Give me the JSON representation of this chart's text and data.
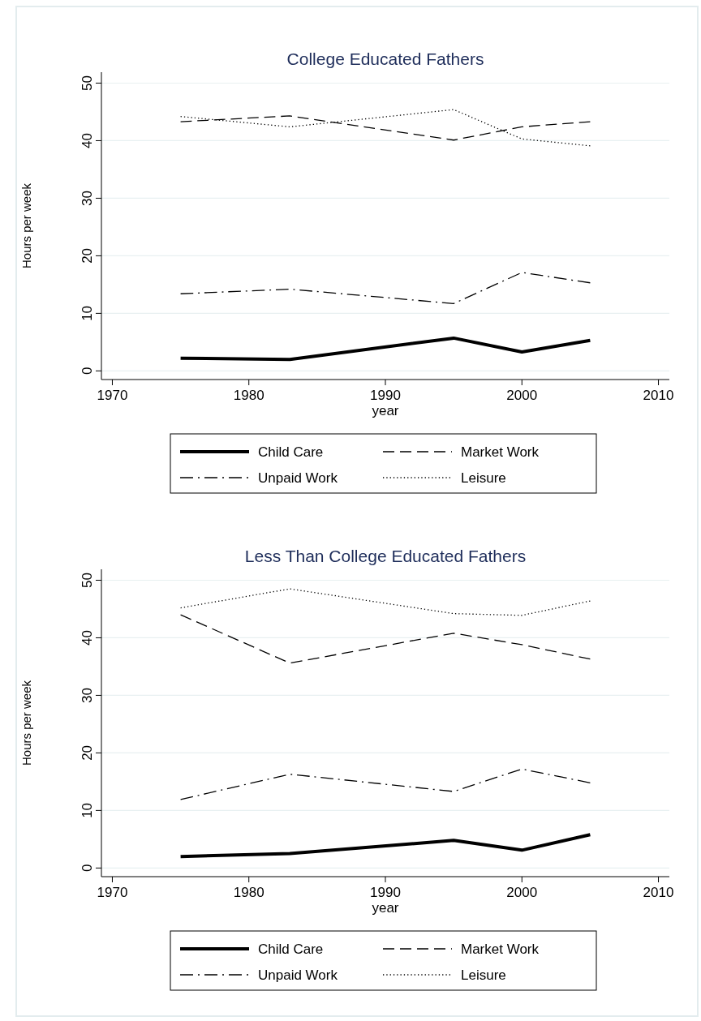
{
  "chart_data": [
    {
      "type": "line",
      "title": "College Educated Fathers",
      "xlabel": "year",
      "ylabel": "Hours per week",
      "xlim": [
        1969.2,
        2010.8
      ],
      "xticks": [
        1970,
        1980,
        1990,
        2000,
        2010
      ],
      "ylim": [
        -1.5,
        51.9
      ],
      "yticks": [
        0,
        10,
        20,
        30,
        40,
        50
      ],
      "grid": "y",
      "legend": "bottom",
      "x": [
        1975,
        1983,
        1995,
        2000,
        2005
      ],
      "series": [
        {
          "name": "Child Care",
          "color": "#000000",
          "line_style": "solid",
          "values": [
            2.2,
            2.0,
            5.7,
            3.3,
            5.3
          ]
        },
        {
          "name": "Market Work",
          "color": "#000000",
          "line_style": "dashed",
          "values": [
            43.3,
            44.3,
            40.1,
            42.4,
            43.3
          ]
        },
        {
          "name": "Unpaid Work",
          "color": "#000000",
          "line_style": "dashdot",
          "values": [
            13.4,
            14.2,
            11.7,
            17.1,
            15.3
          ]
        },
        {
          "name": "Leisure",
          "color": "#000000",
          "line_style": "dotted",
          "values": [
            44.2,
            42.4,
            45.4,
            40.3,
            39.1
          ]
        }
      ]
    },
    {
      "type": "line",
      "title": "Less Than College Educated Fathers",
      "xlabel": "year",
      "ylabel": "Hours per week",
      "xlim": [
        1969.2,
        2010.8
      ],
      "xticks": [
        1970,
        1980,
        1990,
        2000,
        2010
      ],
      "ylim": [
        -1.5,
        51.9
      ],
      "yticks": [
        0,
        10,
        20,
        30,
        40,
        50
      ],
      "grid": "y",
      "legend": "bottom",
      "x": [
        1975,
        1983,
        1995,
        2000,
        2005
      ],
      "series": [
        {
          "name": "Child Care",
          "color": "#000000",
          "line_style": "solid",
          "values": [
            2.0,
            2.5,
            4.8,
            3.1,
            5.8
          ]
        },
        {
          "name": "Market Work",
          "color": "#000000",
          "line_style": "dashed",
          "values": [
            44.0,
            35.6,
            40.8,
            38.8,
            36.3
          ]
        },
        {
          "name": "Unpaid Work",
          "color": "#000000",
          "line_style": "dashdot",
          "values": [
            11.9,
            16.3,
            13.3,
            17.2,
            14.8
          ]
        },
        {
          "name": "Leisure",
          "color": "#000000",
          "line_style": "dotted",
          "values": [
            45.2,
            48.5,
            44.2,
            43.9,
            46.4
          ]
        }
      ]
    }
  ]
}
